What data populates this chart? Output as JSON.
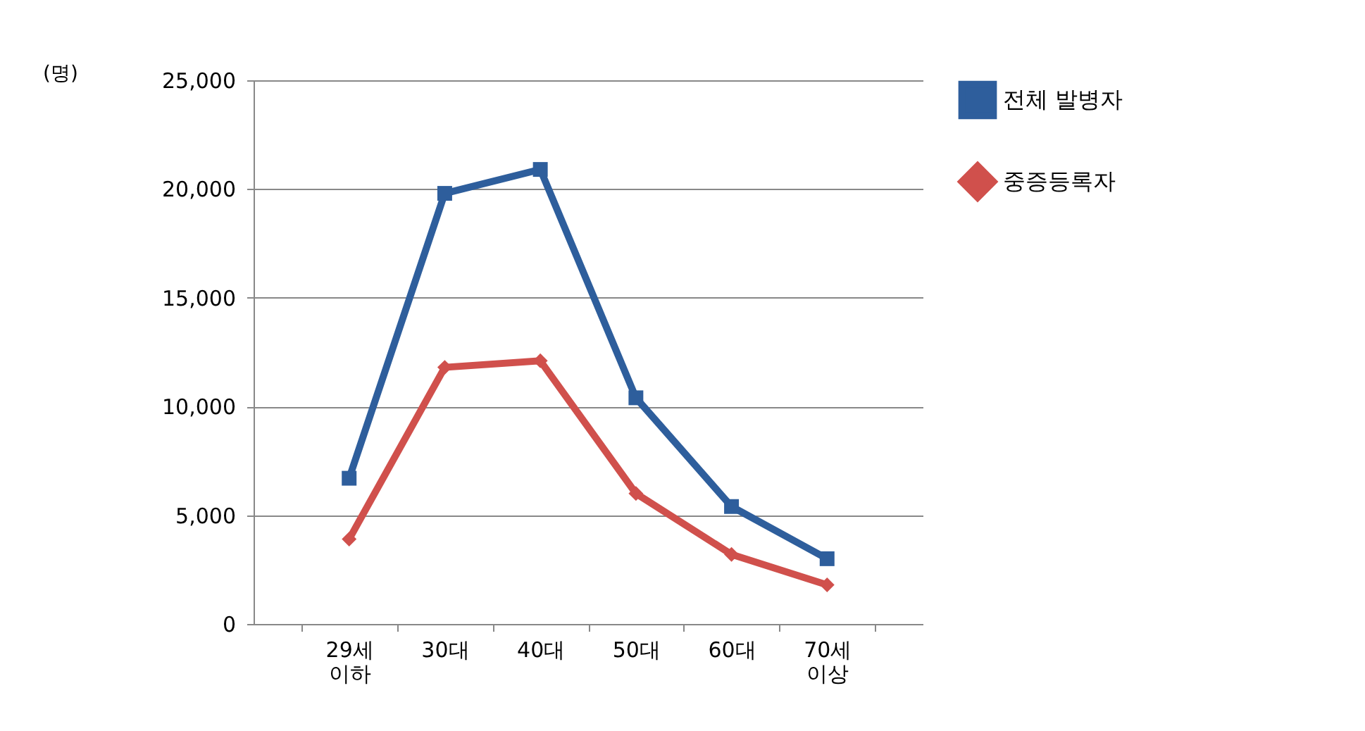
{
  "chart_data": {
    "type": "line",
    "ylabel": "(명)",
    "categories": [
      "29세 이하",
      "30대",
      "40대",
      "50대",
      "60대",
      "70세 이상"
    ],
    "series": [
      {
        "name": "전체 발병자",
        "color": "#2e5e9c",
        "marker": "square",
        "values": [
          6700,
          19800,
          20900,
          10400,
          5400,
          3000
        ]
      },
      {
        "name": "중증등록자",
        "color": "#d0504c",
        "marker": "diamond",
        "values": [
          3900,
          11800,
          12100,
          6000,
          3200,
          1800
        ]
      }
    ],
    "ylim": [
      0,
      25000
    ],
    "yticks": [
      {
        "value": 0,
        "label": "0"
      },
      {
        "value": 5000,
        "label": "5,000"
      },
      {
        "value": 10000,
        "label": "10,000"
      },
      {
        "value": 15000,
        "label": "15,000"
      },
      {
        "value": 20000,
        "label": "20,000"
      },
      {
        "value": 25000,
        "label": "25,000"
      }
    ],
    "grid": "y",
    "legend": "right"
  }
}
